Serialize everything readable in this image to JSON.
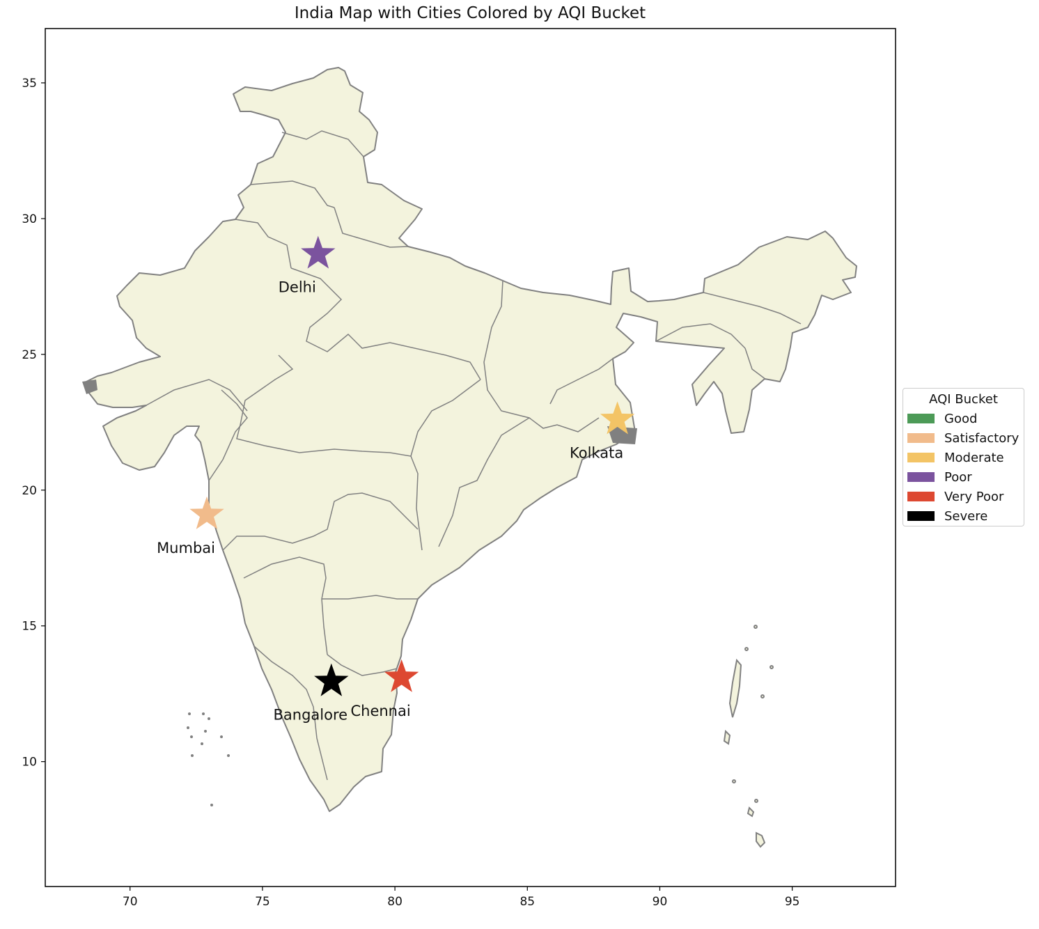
{
  "chart_data": {
    "type": "map",
    "title": "India Map with Cities Colored by AQI Bucket",
    "xlim": [
      66.8,
      98.9
    ],
    "ylim": [
      5.4,
      37.0
    ],
    "x_ticks": [
      70,
      75,
      80,
      85,
      90,
      95
    ],
    "y_ticks": [
      10,
      15,
      20,
      25,
      30,
      35
    ],
    "legend": {
      "title": "AQI Bucket",
      "placement": "center-right, outside plot",
      "items": [
        {
          "label": "Good",
          "color": "#4c9a57"
        },
        {
          "label": "Satisfactory",
          "color": "#f1bb8b"
        },
        {
          "label": "Moderate",
          "color": "#f3c466"
        },
        {
          "label": "Poor",
          "color": "#7b539e"
        },
        {
          "label": "Very Poor",
          "color": "#dd4831"
        },
        {
          "label": "Severe",
          "color": "#000000"
        }
      ]
    },
    "cities": [
      {
        "name": "Delhi",
        "lon": 77.1,
        "lat": 28.7,
        "bucket": "Poor",
        "color": "#7b539e"
      },
      {
        "name": "Kolkata",
        "lon": 88.4,
        "lat": 22.6,
        "bucket": "Moderate",
        "color": "#f3c466"
      },
      {
        "name": "Mumbai",
        "lon": 72.9,
        "lat": 19.1,
        "bucket": "Satisfactory",
        "color": "#f1bb8b"
      },
      {
        "name": "Bangalore",
        "lon": 77.6,
        "lat": 12.95,
        "bucket": "Severe",
        "color": "#000000"
      },
      {
        "name": "Chennai",
        "lon": 80.25,
        "lat": 13.1,
        "bucket": "Very Poor",
        "color": "#dd4831"
      }
    ],
    "land_color": "#f3f3dd",
    "border_color": "#808080"
  }
}
